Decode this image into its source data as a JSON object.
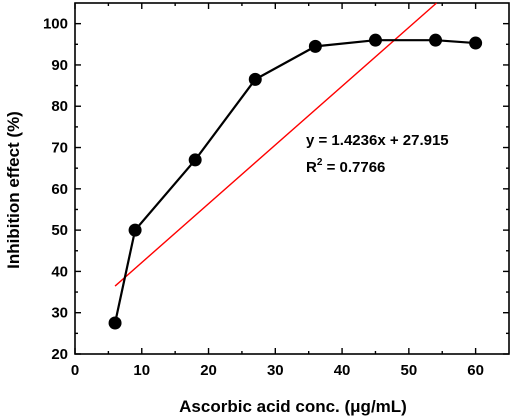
{
  "chart_data": {
    "type": "scatter",
    "xlabel": "Ascorbic acid conc. (μg/mL)",
    "ylabel": "Inhibition effect (%)",
    "xlim": [
      0,
      65
    ],
    "ylim": [
      20,
      105
    ],
    "x_ticks": [
      0,
      10,
      20,
      30,
      40,
      50,
      60
    ],
    "y_ticks": [
      20,
      30,
      40,
      50,
      60,
      70,
      80,
      90,
      100
    ],
    "grid": false,
    "series": [
      {
        "x": [
          6,
          9,
          18,
          27,
          36,
          45,
          54,
          60
        ],
        "y": [
          27.5,
          50,
          67,
          86.5,
          94.5,
          96,
          96,
          95.3
        ],
        "color": "#000000",
        "style": "line-with-markers"
      }
    ],
    "fit_line": {
      "slope": 1.4236,
      "intercept": 27.915,
      "x_range": [
        6,
        63
      ],
      "color": "#ff0000"
    },
    "annotations": {
      "equation": "y = 1.4236x + 27.915",
      "r2_prefix": "R",
      "r2_sup": "2",
      "r2_suffix": " = 0.7766"
    }
  }
}
